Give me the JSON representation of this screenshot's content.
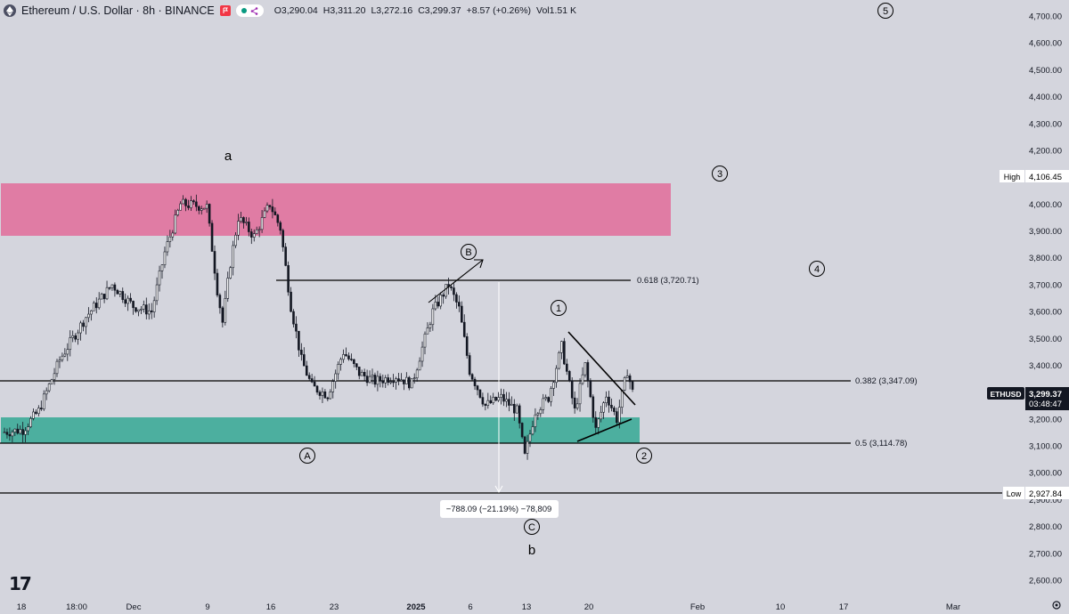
{
  "header": {
    "title": "Ethereum / U.S. Dollar · 8h · BINANCE",
    "open": "O3,290.04",
    "high": "H3,311.20",
    "low": "L3,272.16",
    "close": "C3,299.37",
    "change": "+8.57 (+0.26%)",
    "volume": "Vol1.51 K"
  },
  "price_scale": {
    "ticks": [
      "4,700.00",
      "4,600.00",
      "4,500.00",
      "4,400.00",
      "4,300.00",
      "4,200.00",
      "4,100.00",
      "4,000.00",
      "3,900.00",
      "3,800.00",
      "3,700.00",
      "3,600.00",
      "3,500.00",
      "3,400.00",
      "3,300.00",
      "3,200.00",
      "3,100.00",
      "3,000.00",
      "2,900.00",
      "2,800.00",
      "2,700.00",
      "2,600.00"
    ],
    "high_label": "High",
    "high_value": "4,106.45",
    "low_label": "Low",
    "low_value": "2,927.84",
    "symbol_tag": "ETHUSD",
    "last_price": "3,299.37",
    "countdown": "03:48:47"
  },
  "time_scale": {
    "ticks": [
      "18",
      "18:00",
      "Dec",
      "9",
      "16",
      "23",
      "2025",
      "6",
      "13",
      "20",
      "Feb",
      "10",
      "17",
      "Mar"
    ]
  },
  "annotations": {
    "fib_0618": "0.618 (3,720.71)",
    "fib_0382": "0.382 (3,347.09)",
    "fib_05": "0.5 (3,114.78)",
    "measure": "−788.09 (−21.19%) −78,809",
    "wave_a": "a",
    "wave_b": "b",
    "wave_A": "A",
    "wave_B": "B",
    "wave_C": "C",
    "wave_1": "1",
    "wave_2": "2",
    "wave_3": "3",
    "wave_4": "4",
    "wave_5": "5"
  },
  "colors": {
    "background": "#d4d5dd",
    "supply_zone": "#e07ca4",
    "demand_zone": "#4caf9f",
    "candle": "#131722",
    "line": "#000000"
  },
  "chart_data": {
    "type": "candlestick",
    "symbol": "ETHUSD",
    "interval": "8h",
    "exchange": "BINANCE",
    "ylim": [
      2550,
      4760
    ],
    "last_close": 3299.37,
    "high": 4106.45,
    "low": 2927.84,
    "fib_levels": [
      {
        "ratio": 0.618,
        "price": 3720.71
      },
      {
        "ratio": 0.382,
        "price": 3347.09
      },
      {
        "ratio": 0.5,
        "price": 3114.78
      }
    ],
    "zones": [
      {
        "name": "supply",
        "from": 3890,
        "to": 4085
      },
      {
        "name": "demand",
        "from": 3108,
        "to": 3205
      }
    ],
    "path": [
      {
        "t": 0,
        "p": 3150
      },
      {
        "t": 8,
        "p": 3160
      },
      {
        "t": 14,
        "p": 3230
      },
      {
        "t": 22,
        "p": 3420
      },
      {
        "t": 32,
        "p": 3580
      },
      {
        "t": 42,
        "p": 3700
      },
      {
        "t": 50,
        "p": 3620
      },
      {
        "t": 57,
        "p": 3600
      },
      {
        "t": 62,
        "p": 3820
      },
      {
        "t": 68,
        "p": 4000
      },
      {
        "t": 78,
        "p": 3990
      },
      {
        "t": 82,
        "p": 3680
      },
      {
        "t": 84,
        "p": 3560
      },
      {
        "t": 87,
        "p": 3780
      },
      {
        "t": 90,
        "p": 3950
      },
      {
        "t": 96,
        "p": 3880
      },
      {
        "t": 102,
        "p": 4000
      },
      {
        "t": 106,
        "p": 3910
      },
      {
        "t": 110,
        "p": 3620
      },
      {
        "t": 114,
        "p": 3420
      },
      {
        "t": 118,
        "p": 3320
      },
      {
        "t": 124,
        "p": 3290
      },
      {
        "t": 130,
        "p": 3450
      },
      {
        "t": 136,
        "p": 3370
      },
      {
        "t": 142,
        "p": 3340
      },
      {
        "t": 150,
        "p": 3360
      },
      {
        "t": 156,
        "p": 3330
      },
      {
        "t": 164,
        "p": 3600
      },
      {
        "t": 170,
        "p": 3700
      },
      {
        "t": 174,
        "p": 3610
      },
      {
        "t": 178,
        "p": 3380
      },
      {
        "t": 184,
        "p": 3250
      },
      {
        "t": 190,
        "p": 3280
      },
      {
        "t": 196,
        "p": 3230
      },
      {
        "t": 199,
        "p": 3060
      },
      {
        "t": 203,
        "p": 3230
      },
      {
        "t": 208,
        "p": 3280
      },
      {
        "t": 213,
        "p": 3470
      },
      {
        "t": 218,
        "p": 3230
      },
      {
        "t": 222,
        "p": 3400
      },
      {
        "t": 226,
        "p": 3160
      },
      {
        "t": 230,
        "p": 3290
      },
      {
        "t": 234,
        "p": 3200
      },
      {
        "t": 238,
        "p": 3380
      },
      {
        "t": 240,
        "p": 3300
      }
    ]
  }
}
